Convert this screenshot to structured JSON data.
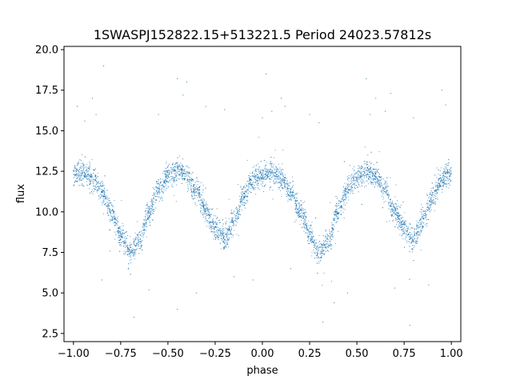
{
  "chart_data": {
    "type": "scatter",
    "title": "1SWASPJ152822.15+513221.5 Period 24023.57812s",
    "xlabel": "phase",
    "ylabel": "flux",
    "xlim": [
      -1.05,
      1.05
    ],
    "ylim": [
      2.0,
      20.2
    ],
    "xticks": [
      -1.0,
      -0.75,
      -0.5,
      -0.25,
      0.0,
      0.25,
      0.5,
      0.75,
      1.0
    ],
    "xtick_labels": [
      "−1.00",
      "−0.75",
      "−0.50",
      "−0.25",
      "0.00",
      "0.25",
      "0.50",
      "0.75",
      "1.00"
    ],
    "yticks": [
      2.5,
      5.0,
      7.5,
      10.0,
      12.5,
      15.0,
      17.5,
      20.0
    ],
    "ytick_labels": [
      "2.5",
      "5.0",
      "7.5",
      "10.0",
      "12.5",
      "15.0",
      "17.5",
      "20.0"
    ],
    "grid": false,
    "marker_color": "#1f77b4",
    "light_curve": {
      "description_points": {
        "phase": [
          -1.0,
          -0.95,
          -0.9,
          -0.85,
          -0.8,
          -0.75,
          -0.7,
          -0.65,
          -0.6,
          -0.55,
          -0.5,
          -0.45,
          -0.4,
          -0.35,
          -0.3,
          -0.25,
          -0.2,
          -0.15,
          -0.1,
          -0.05,
          0.0,
          0.05,
          0.1,
          0.15,
          0.2,
          0.25,
          0.3,
          0.35,
          0.4,
          0.45,
          0.5,
          0.55,
          0.6,
          0.65,
          0.7,
          0.75,
          0.8,
          0.85,
          0.9,
          0.95,
          1.0
        ],
        "flux": [
          12.3,
          12.4,
          12.0,
          11.2,
          10.0,
          8.6,
          7.5,
          8.2,
          10.0,
          11.4,
          12.2,
          12.5,
          12.2,
          11.3,
          10.0,
          9.0,
          8.4,
          9.4,
          10.9,
          12.0,
          12.3,
          12.4,
          12.0,
          11.2,
          10.0,
          8.6,
          7.5,
          8.2,
          10.0,
          11.4,
          12.2,
          12.5,
          12.2,
          11.3,
          10.0,
          9.0,
          8.4,
          9.4,
          10.9,
          12.0,
          12.3
        ]
      },
      "scatter_width": 0.35
    },
    "outliers": {
      "phase": [
        -0.98,
        -0.94,
        -0.9,
        -0.88,
        -0.84,
        -0.55,
        -0.45,
        -0.42,
        -0.4,
        -0.3,
        0.0,
        0.02,
        0.05,
        0.1,
        0.12,
        0.25,
        0.3,
        0.55,
        0.57,
        0.6,
        0.65,
        0.68,
        0.8,
        0.95,
        0.97,
        -0.2,
        -0.6,
        -0.45,
        0.45,
        0.78,
        0.88,
        -0.15,
        0.15,
        -0.05,
        0.38,
        -0.85,
        -0.68,
        0.32,
        -0.35,
        0.7
      ],
      "flux": [
        16.5,
        15.6,
        17.0,
        16.0,
        19.0,
        16.0,
        18.2,
        17.2,
        18.0,
        16.5,
        15.8,
        18.5,
        16.2,
        17.0,
        16.5,
        16.0,
        15.5,
        18.2,
        16.0,
        17.0,
        16.2,
        17.3,
        15.8,
        17.5,
        16.6,
        16.3,
        5.2,
        4.0,
        5.0,
        3.0,
        5.5,
        6.0,
        6.5,
        5.8,
        4.4,
        5.8,
        3.5,
        3.2,
        5.0,
        5.3
      ]
    }
  }
}
